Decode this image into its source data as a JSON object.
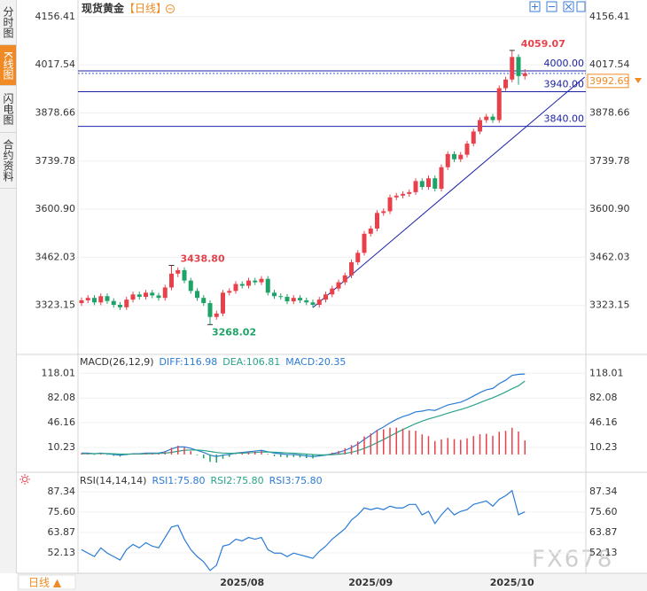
{
  "sidebar": {
    "tabs": [
      "分时图",
      "K线图",
      "闪电图",
      "合约资料"
    ],
    "active": 1
  },
  "footer": {
    "period": "日线 ▲"
  },
  "watermark": "FX678",
  "chart_data": [
    {
      "type": "candlestick",
      "title": "现货黄金",
      "period": "【日线】",
      "categories": [
        null,
        null,
        null,
        null,
        null,
        null,
        null,
        null,
        null,
        null,
        null,
        null,
        null,
        null,
        null,
        null,
        null,
        null,
        null,
        null,
        null,
        null,
        null,
        null,
        null,
        "2025/08",
        null,
        null,
        null,
        null,
        null,
        null,
        null,
        null,
        null,
        null,
        null,
        null,
        null,
        null,
        null,
        null,
        null,
        null,
        null,
        "2025/09",
        null,
        null,
        null,
        null,
        null,
        null,
        null,
        null,
        null,
        null,
        null,
        null,
        null,
        null,
        null,
        null,
        null,
        null,
        null,
        null,
        null,
        "2025/10",
        null,
        null
      ],
      "open": [
        3330,
        3338,
        3345,
        3332,
        3350,
        3336,
        3325,
        3318,
        3340,
        3355,
        3348,
        3360,
        3352,
        3345,
        3375,
        3415,
        3425,
        3395,
        3365,
        3345,
        3330,
        3290,
        3300,
        3360,
        3365,
        3385,
        3380,
        3395,
        3390,
        3400,
        3360,
        3350,
        3348,
        3335,
        3345,
        3338,
        3332,
        3325,
        3340,
        3355,
        3372,
        3390,
        3410,
        3448,
        3475,
        3530,
        3545,
        3590,
        3595,
        3635,
        3640,
        3645,
        3650,
        3682,
        3665,
        3690,
        3660,
        3722,
        3760,
        3745,
        3758,
        3790,
        3825,
        3858,
        3868,
        3858,
        3950,
        3975,
        4040,
        3985
      ],
      "high": [
        3346,
        3353,
        3353,
        3358,
        3358,
        3344,
        3333,
        3348,
        3363,
        3363,
        3368,
        3368,
        3360,
        3383,
        3438.8,
        3433,
        3433,
        3403,
        3373,
        3353,
        3338,
        3308,
        3368,
        3373,
        3393,
        3393,
        3403,
        3403,
        3408,
        3408,
        3368,
        3358,
        3356,
        3353,
        3353,
        3346,
        3340,
        3348,
        3363,
        3380,
        3398,
        3418,
        3456,
        3483,
        3538,
        3553,
        3598,
        3603,
        3643,
        3648,
        3653,
        3658,
        3690,
        3690,
        3698,
        3698,
        3730,
        3768,
        3768,
        3766,
        3798,
        3833,
        3866,
        3876,
        3876,
        3958,
        3983,
        4059.07,
        4048,
        4005
      ],
      "low": [
        3322,
        3330,
        3324,
        3324,
        3328,
        3317,
        3310,
        3310,
        3332,
        3340,
        3340,
        3344,
        3337,
        3337,
        3367,
        3405,
        3387,
        3357,
        3337,
        3322,
        3268.02,
        3282,
        3292,
        3352,
        3357,
        3372,
        3372,
        3382,
        3382,
        3352,
        3342,
        3340,
        3327,
        3327,
        3330,
        3324,
        3317,
        3317,
        3332,
        3347,
        3364,
        3382,
        3402,
        3440,
        3467,
        3522,
        3537,
        3582,
        3587,
        3627,
        3632,
        3637,
        3642,
        3657,
        3657,
        3652,
        3652,
        3714,
        3737,
        3737,
        3750,
        3782,
        3817,
        3850,
        3850,
        3850,
        3942,
        3967,
        3960,
        3975
      ],
      "close": [
        3338,
        3345,
        3332,
        3350,
        3336,
        3325,
        3318,
        3340,
        3355,
        3348,
        3360,
        3352,
        3345,
        3375,
        3415,
        3425,
        3395,
        3365,
        3345,
        3330,
        3290,
        3300,
        3360,
        3365,
        3385,
        3380,
        3395,
        3390,
        3400,
        3360,
        3350,
        3348,
        3335,
        3345,
        3338,
        3332,
        3325,
        3340,
        3355,
        3372,
        3390,
        3410,
        3448,
        3475,
        3530,
        3545,
        3590,
        3595,
        3635,
        3640,
        3645,
        3650,
        3682,
        3665,
        3690,
        3660,
        3722,
        3760,
        3745,
        3758,
        3790,
        3825,
        3858,
        3868,
        3858,
        3950,
        3975,
        4040,
        3985,
        3992.69
      ],
      "high_labels": [
        null,
        null,
        null,
        null,
        null,
        null,
        null,
        null,
        null,
        null,
        null,
        null,
        null,
        null,
        "3438.80",
        null,
        null,
        null,
        null,
        null,
        null,
        null,
        null,
        null,
        null,
        null,
        null,
        null,
        null,
        null,
        null,
        null,
        null,
        null,
        null,
        null,
        null,
        null,
        null,
        null,
        null,
        null,
        null,
        null,
        null,
        null,
        null,
        null,
        null,
        null,
        null,
        null,
        null,
        null,
        null,
        null,
        null,
        null,
        null,
        null,
        null,
        null,
        null,
        null,
        null,
        null,
        null,
        "4059.07",
        null,
        null
      ],
      "low_labels": [
        null,
        null,
        null,
        null,
        null,
        null,
        null,
        null,
        null,
        null,
        null,
        null,
        null,
        null,
        null,
        null,
        null,
        null,
        null,
        null,
        "3268.02",
        null,
        null,
        null,
        null,
        null,
        null,
        null,
        null,
        null,
        null,
        null,
        null,
        null,
        null,
        null,
        null,
        null,
        null,
        null,
        null,
        null,
        null,
        null,
        null,
        null,
        null,
        null,
        null,
        null,
        null,
        null,
        null,
        null,
        null,
        null,
        null,
        null,
        null,
        null,
        null,
        null,
        null,
        null,
        null,
        null,
        null,
        null,
        null,
        null
      ],
      "up_color": "#e8414b",
      "down_color": "#1ea366",
      "ylim": [
        3187,
        4184
      ],
      "yticks": [
        4156.41,
        4017.54,
        3878.66,
        3739.78,
        {
          "value": 3600.9,
          "label": "3600.90"
        },
        3462.03,
        3323.15
      ],
      "hlines": [
        {
          "value": 4000,
          "label": "4000.00"
        },
        {
          "value": 3940,
          "label": "3940.00"
        },
        {
          "value": 3840,
          "label": "3840.00"
        }
      ],
      "hline_color": "#1c22a8",
      "last_price": 3992.69,
      "last_color": "#f08a24",
      "trendline": {
        "from": [
          36,
          3317
        ],
        "to": [
          78.3,
          3982
        ]
      }
    },
    {
      "type": "macd",
      "title": "MACD(26,12,9)",
      "ylim": [
        -22,
        130
      ],
      "yticks": [
        118.01,
        82.08,
        46.16,
        10.23
      ],
      "up_color": "#e8414b",
      "down_color": "#1ea366",
      "series": [
        {
          "name": "DIFF:116.98",
          "color": "#2b7bd6",
          "values": [
            2,
            2,
            1,
            2,
            1,
            0,
            -1,
            0,
            1,
            1,
            2,
            2,
            2,
            4,
            8,
            11,
            11,
            9,
            6,
            3,
            -1,
            -3,
            -1,
            0,
            2,
            3,
            4,
            5,
            6,
            4,
            2,
            1,
            0,
            0,
            -1,
            -2,
            -3,
            -2,
            -1,
            1,
            3,
            6,
            10,
            15,
            22,
            28,
            35,
            40,
            46,
            51,
            55,
            58,
            62,
            63,
            65,
            64,
            68,
            72,
            74,
            76,
            80,
            85,
            90,
            94,
            96,
            103,
            108,
            115,
            116.5,
            116.98
          ]
        },
        {
          "name": "DEA:106.81",
          "color": "#29a38a",
          "values": [
            1,
            1.2,
            1.2,
            1.4,
            1.3,
            1,
            0.6,
            0.5,
            0.6,
            0.7,
            1,
            1.2,
            1.4,
            1.9,
            3.1,
            4.7,
            6,
            6.6,
            6.5,
            5.8,
            4.4,
            2.9,
            2.1,
            1.7,
            1.8,
            2,
            2.4,
            2.9,
            3.5,
            3.6,
            3.3,
            2.8,
            2.2,
            1.8,
            1.2,
            0.6,
            -0.1,
            -0.5,
            -0.6,
            -0.3,
            0.4,
            1.5,
            3.2,
            5.6,
            8.9,
            12.7,
            17.2,
            21.7,
            26.6,
            31.5,
            36.2,
            40.5,
            44.8,
            48.4,
            51.7,
            54.2,
            57,
            60,
            62.8,
            65.4,
            68.3,
            71.6,
            75.3,
            79,
            82.4,
            86.5,
            90.8,
            95.6,
            99.8,
            106.81
          ]
        },
        {
          "name": "MACD:20.35",
          "color": "#2b7bd6",
          "type": "bar",
          "values": [
            2,
            1.6,
            -0.4,
            1.2,
            -0.6,
            -2,
            -3.2,
            -1,
            0.8,
            0.6,
            2,
            1.6,
            1.2,
            4.2,
            9.8,
            12.6,
            10,
            4.8,
            -1,
            -5.6,
            -10.8,
            -11.8,
            -6.2,
            -3.4,
            0.4,
            2,
            3.2,
            4.2,
            5,
            0.8,
            -2.6,
            -3.6,
            -4.4,
            -3.6,
            -4.4,
            -5.2,
            -5.8,
            -3,
            -0.8,
            2.6,
            5.2,
            9,
            13.6,
            18.8,
            26.2,
            30.6,
            35.6,
            36.6,
            38.8,
            39,
            37.6,
            35,
            34.4,
            29.2,
            26.6,
            19.6,
            22,
            24,
            22.4,
            21.2,
            23.4,
            26.8,
            29.4,
            30,
            27.2,
            33,
            34.4,
            38.8,
            33.4,
            20.35
          ]
        }
      ]
    },
    {
      "type": "line",
      "title": "RSI(14,14,14)",
      "ylim": [
        41.4,
        92.4
      ],
      "yticks": [
        87.34,
        {
          "value": 75.6,
          "label": "75.60"
        },
        63.87,
        52.13
      ],
      "series": [
        {
          "name": "RSI1:75.80",
          "color": "#2b7bd6",
          "values": [
            54,
            52,
            50,
            55,
            52,
            50,
            48,
            54,
            57,
            55,
            58,
            56,
            55,
            61,
            67,
            68,
            60,
            54,
            50,
            47,
            42,
            45,
            56,
            57,
            60,
            59,
            61,
            60,
            61,
            54,
            52,
            52,
            50,
            52,
            51,
            50,
            49,
            53,
            56,
            60,
            63,
            66,
            71,
            74,
            78,
            77,
            78,
            77,
            79,
            78,
            78,
            80,
            80,
            74,
            76,
            69,
            74,
            78,
            74,
            76,
            77,
            80,
            81,
            82,
            79,
            83,
            85,
            88,
            74,
            75.8
          ]
        }
      ],
      "legend_extra": [
        {
          "name": "RSI2:75.80",
          "color": "#29a38a"
        },
        {
          "name": "RSI3:75.80",
          "color": "#2b7bd6"
        }
      ]
    }
  ]
}
